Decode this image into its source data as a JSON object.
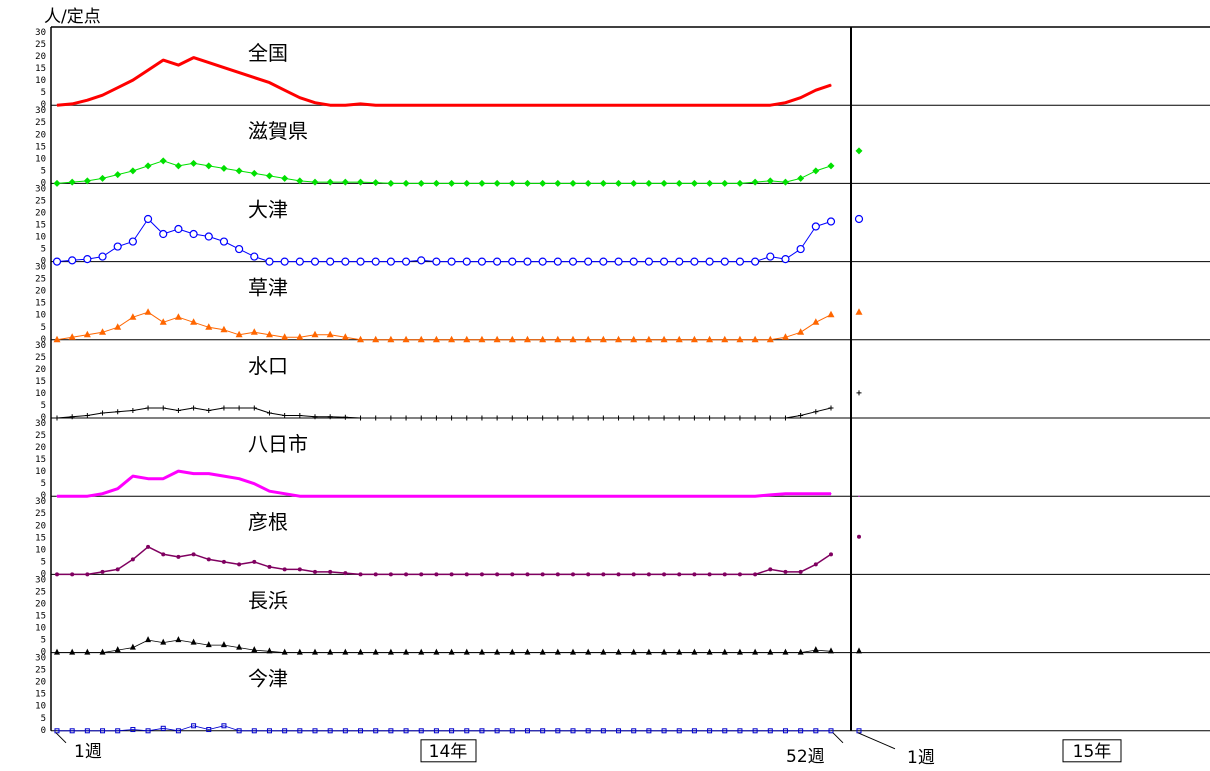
{
  "chart_data": {
    "type": "line",
    "unit_label": "人/定点",
    "y_ticks": [
      "30",
      "25",
      "20",
      "15",
      "10",
      "5",
      "0"
    ],
    "ylim": [
      0,
      30
    ],
    "x_labels": {
      "start_week": "1週",
      "year_a": "14年",
      "end_week": "52週",
      "next_start_week": "1週",
      "year_b": "15年"
    },
    "weeks": [
      1,
      2,
      3,
      4,
      5,
      6,
      7,
      8,
      9,
      10,
      11,
      12,
      13,
      14,
      15,
      16,
      17,
      18,
      19,
      20,
      21,
      22,
      23,
      24,
      25,
      26,
      27,
      28,
      29,
      30,
      31,
      32,
      33,
      34,
      35,
      36,
      37,
      38,
      39,
      40,
      41,
      42,
      43,
      44,
      45,
      46,
      47,
      48,
      49,
      50,
      51,
      52
    ],
    "series": [
      {
        "name": "全国",
        "color": "#ff0000",
        "marker": "none",
        "width": 3,
        "values": [
          0,
          0.5,
          2,
          4,
          7,
          10,
          14,
          18,
          16,
          19,
          17,
          15,
          13,
          11,
          9,
          6,
          3,
          1,
          0,
          0,
          0.5,
          0,
          0,
          0,
          0,
          0,
          0,
          0,
          0,
          0,
          0,
          0,
          0,
          0,
          0,
          0,
          0,
          0,
          0,
          0,
          0,
          0,
          0,
          0,
          0,
          0,
          0,
          0,
          1,
          3,
          6,
          8
        ],
        "next_year": []
      },
      {
        "name": "滋賀県",
        "color": "#00e000",
        "marker": "diamond",
        "width": 1,
        "values": [
          0,
          0.5,
          1,
          2,
          3.5,
          5,
          7,
          9,
          7,
          8,
          7,
          6,
          5,
          4,
          3,
          2,
          1,
          0.5,
          0.5,
          0.5,
          0.5,
          0.3,
          0,
          0,
          0,
          0,
          0,
          0,
          0,
          0,
          0,
          0,
          0,
          0,
          0,
          0,
          0,
          0,
          0,
          0,
          0,
          0,
          0,
          0,
          0,
          0,
          0.5,
          1,
          0.5,
          2,
          5,
          7
        ],
        "next_year": [
          13
        ]
      },
      {
        "name": "大津",
        "color": "#0000ff",
        "marker": "circle",
        "width": 1,
        "values": [
          0,
          0.5,
          1,
          2,
          6,
          8,
          17,
          11,
          13,
          11,
          10,
          8,
          5,
          2,
          0,
          0,
          0,
          0,
          0,
          0,
          0,
          0,
          0,
          0,
          0.5,
          0,
          0,
          0,
          0,
          0,
          0,
          0,
          0,
          0,
          0,
          0,
          0,
          0,
          0,
          0,
          0,
          0,
          0,
          0,
          0,
          0,
          0,
          2,
          1,
          5,
          14,
          16
        ],
        "next_year": [
          17
        ]
      },
      {
        "name": "草津",
        "color": "#ff6600",
        "marker": "triangle",
        "width": 1,
        "values": [
          0,
          1,
          2,
          3,
          5,
          9,
          11,
          7,
          9,
          7,
          5,
          4,
          2,
          3,
          2,
          1,
          1,
          2,
          2,
          1,
          0,
          0,
          0,
          0,
          0,
          0,
          0,
          0,
          0,
          0,
          0,
          0,
          0,
          0,
          0,
          0,
          0,
          0,
          0,
          0,
          0,
          0,
          0,
          0,
          0,
          0,
          0,
          0,
          1,
          3,
          7,
          10
        ],
        "next_year": [
          11
        ]
      },
      {
        "name": "水口",
        "color": "#000000",
        "marker": "plus",
        "width": 1,
        "values": [
          0,
          0.5,
          1,
          2,
          2.5,
          3,
          4,
          4,
          3,
          4,
          3,
          4,
          4,
          4,
          2,
          1,
          1,
          0.5,
          0.5,
          0.3,
          0,
          0,
          0,
          0,
          0,
          0,
          0,
          0,
          0,
          0,
          0,
          0,
          0,
          0,
          0,
          0,
          0,
          0,
          0,
          0,
          0,
          0,
          0,
          0,
          0,
          0,
          0,
          0,
          0,
          1,
          2.5,
          4
        ],
        "next_year": [
          10
        ]
      },
      {
        "name": "八日市",
        "color": "#ff00ff",
        "marker": "none",
        "width": 3,
        "values": [
          0,
          0,
          0,
          1,
          3,
          8,
          7,
          7,
          10,
          9,
          9,
          8,
          7,
          5,
          2,
          1,
          0,
          0,
          0,
          0,
          0,
          0,
          0,
          0,
          0,
          0,
          0,
          0,
          0,
          0,
          0,
          0,
          0,
          0,
          0,
          0,
          0,
          0,
          0,
          0,
          0,
          0,
          0,
          0,
          0,
          0,
          0,
          0.5,
          1,
          1,
          1,
          1
        ],
        "next_year": [
          0
        ]
      },
      {
        "name": "彦根",
        "color": "#800060",
        "marker": "dot",
        "width": 1.5,
        "values": [
          0,
          0,
          0,
          1,
          2,
          6,
          11,
          8,
          7,
          8,
          6,
          5,
          4,
          5,
          3,
          2,
          2,
          1,
          1,
          0.5,
          0,
          0,
          0,
          0,
          0,
          0,
          0,
          0,
          0,
          0,
          0,
          0,
          0,
          0,
          0,
          0,
          0,
          0,
          0,
          0,
          0,
          0,
          0,
          0,
          0,
          0,
          0,
          2,
          1,
          1,
          4,
          8
        ],
        "next_year": [
          15
        ]
      },
      {
        "name": "長浜",
        "color": "#000000",
        "marker": "triangle-filled",
        "width": 0.8,
        "values": [
          0,
          0,
          0,
          0,
          1,
          2,
          5,
          4,
          5,
          4,
          3,
          3,
          2,
          1,
          0.5,
          0,
          0,
          0,
          0,
          0,
          0,
          0,
          0,
          0,
          0,
          0,
          0,
          0,
          0,
          0,
          0,
          0,
          0,
          0,
          0,
          0,
          0,
          0,
          0,
          0,
          0,
          0,
          0,
          0,
          0,
          0,
          0,
          0,
          0,
          0,
          1,
          0.5
        ],
        "next_year": [
          0.5
        ]
      },
      {
        "name": "今津",
        "color": "#0000cc",
        "marker": "square",
        "width": 0.8,
        "values": [
          0,
          0,
          0,
          0,
          0,
          0.5,
          0,
          1,
          0,
          2,
          0.5,
          2,
          0,
          0,
          0,
          0,
          0,
          0,
          0,
          0,
          0,
          0,
          0,
          0,
          0,
          0,
          0,
          0,
          0,
          0,
          0,
          0,
          0,
          0,
          0,
          0,
          0,
          0,
          0,
          0,
          0,
          0,
          0,
          0,
          0,
          0,
          0,
          0,
          0,
          0,
          0,
          0
        ],
        "next_year": [
          0
        ]
      }
    ]
  }
}
